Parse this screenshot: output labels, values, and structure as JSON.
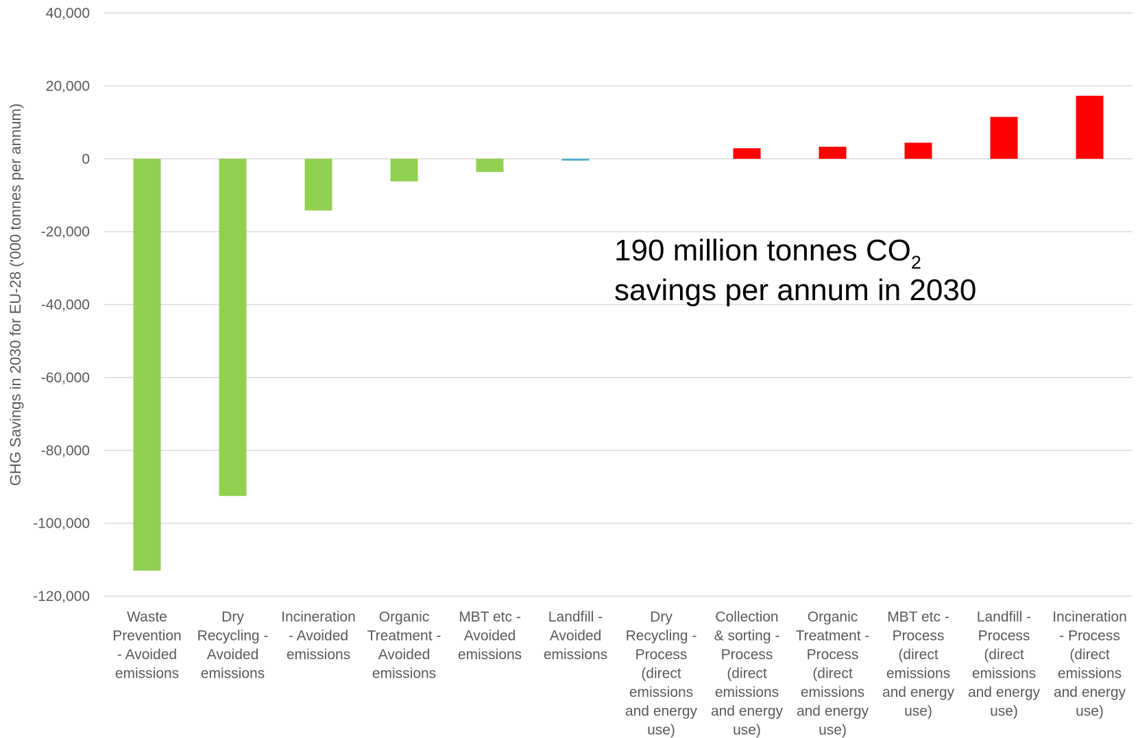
{
  "chart_data": {
    "type": "bar",
    "ylabel": "GHG Savings in 2030 for EU-28 ('000 tonnes per annum)",
    "ylim": [
      -120000,
      40000
    ],
    "yticks": [
      40000,
      20000,
      0,
      -20000,
      -40000,
      -60000,
      -80000,
      -100000,
      -120000
    ],
    "ytick_labels": [
      "40,000",
      "20,000",
      "0",
      "-20,000",
      "-40,000",
      "-60,000",
      "-80,000",
      "-100,000",
      "-120,000"
    ],
    "grid": true,
    "categories": [
      [
        "Waste",
        "Prevention",
        "- Avoided",
        "emissions"
      ],
      [
        "Dry",
        "Recycling -",
        "Avoided",
        "emissions"
      ],
      [
        "Incineration",
        "- Avoided",
        "emissions"
      ],
      [
        "Organic",
        "Treatment -",
        "Avoided",
        "emissions"
      ],
      [
        "MBT etc -",
        "Avoided",
        "emissions"
      ],
      [
        "Landfill -",
        "Avoided",
        "emissions"
      ],
      [
        "Dry",
        "Recycling -",
        "Process",
        "(direct",
        "emissions",
        "and energy",
        "use)"
      ],
      [
        "Collection",
        "& sorting -",
        "Process",
        "(direct",
        "emissions",
        "and energy",
        "use)"
      ],
      [
        "Organic",
        "Treatment -",
        "Process",
        "(direct",
        "emissions",
        "and energy",
        "use)"
      ],
      [
        "MBT etc -",
        "Process",
        "(direct",
        "emissions",
        "and energy",
        "use)"
      ],
      [
        "Landfill -",
        "Process",
        "(direct",
        "emissions",
        "and energy",
        "use)"
      ],
      [
        "Incineration",
        "- Process",
        "(direct",
        "emissions",
        "and energy",
        "use)"
      ]
    ],
    "values": [
      -113000,
      -92500,
      -14200,
      -6200,
      -3600,
      -500,
      0,
      2900,
      3300,
      4400,
      11500,
      17300
    ],
    "bar_colors": [
      "#92d050",
      "#92d050",
      "#92d050",
      "#92d050",
      "#92d050",
      "#4aacc6",
      "#92d050",
      "#ff0000",
      "#ff0000",
      "#ff0000",
      "#ff0000",
      "#ff0000"
    ],
    "annotation": {
      "line1": "190 million tonnes CO",
      "line1_sub": "2",
      "line2": "savings per annum in 2030"
    }
  },
  "colors": {
    "avoided": "#92d050",
    "process": "#ff0000",
    "landfill_avoided": "#4aacc6",
    "gridline": "#d9d9d9",
    "text": "#595959"
  }
}
